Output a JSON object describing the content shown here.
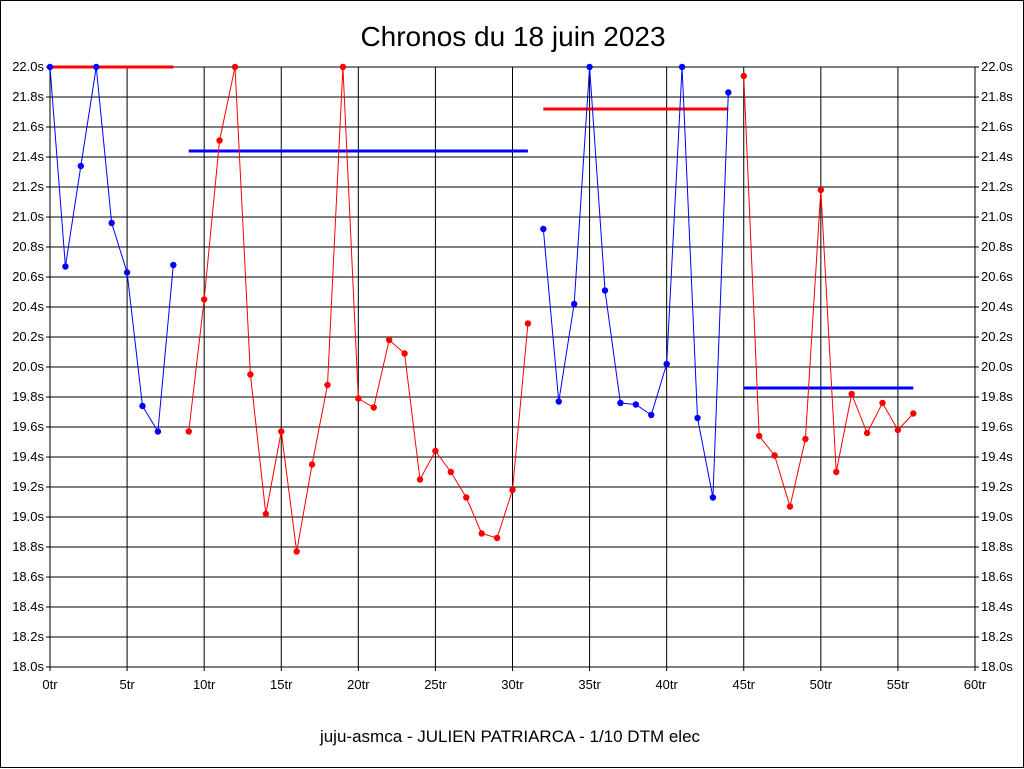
{
  "chart_data": {
    "type": "line",
    "title": "Chronos du 18 juin 2023",
    "footer": "juju-asmca - JULIEN PATRIARCA - 1/10 DTM elec",
    "xlabel": "",
    "ylabel": "",
    "xlim": [
      0,
      60
    ],
    "ylim": [
      18.0,
      22.0
    ],
    "x_ticks": [
      "0tr",
      "5tr",
      "10tr",
      "15tr",
      "20tr",
      "25tr",
      "30tr",
      "35tr",
      "40tr",
      "45tr",
      "50tr",
      "55tr",
      "60tr"
    ],
    "y_ticks": [
      "18.0s",
      "18.2s",
      "18.4s",
      "18.6s",
      "18.8s",
      "19.0s",
      "19.2s",
      "19.4s",
      "19.6s",
      "19.8s",
      "20.0s",
      "20.2s",
      "20.4s",
      "20.6s",
      "20.8s",
      "21.0s",
      "21.2s",
      "21.4s",
      "21.6s",
      "21.8s",
      "22.0s"
    ],
    "y_ticks_right": [
      "18.0s",
      "18.2s",
      "18.4s",
      "18.6s",
      "18.8s",
      "19.0s",
      "19.2s",
      "19.4s",
      "19.6s",
      "19.8s",
      "20.0s",
      "20.2s",
      "20.4s",
      "20.6s",
      "20.8s",
      "21.0s",
      "21.2s",
      "21.4s",
      "21.6s",
      "21.8s",
      "22.0s"
    ],
    "grid": true,
    "series": [
      {
        "color": "#0000ff",
        "x": [
          0,
          1,
          2,
          3,
          4,
          5,
          6,
          7,
          8
        ],
        "values": [
          22.0,
          20.67,
          21.34,
          22.0,
          20.96,
          20.63,
          19.74,
          19.57,
          20.68
        ]
      },
      {
        "color": "#ff0000",
        "x": [
          9,
          10,
          11,
          12,
          13,
          14,
          15,
          16,
          17,
          18,
          19,
          20,
          21,
          22,
          23,
          24,
          25,
          26,
          27,
          28,
          29,
          30,
          31
        ],
        "values": [
          19.57,
          20.45,
          21.51,
          22.0,
          19.95,
          19.02,
          19.57,
          18.77,
          19.35,
          19.88,
          22.0,
          19.79,
          19.73,
          20.18,
          20.09,
          19.25,
          19.44,
          19.3,
          19.13,
          18.89,
          18.86,
          19.18,
          20.29
        ]
      },
      {
        "color": "#0000ff",
        "x": [
          32,
          33,
          34,
          35,
          36,
          37,
          38,
          39,
          40,
          41,
          42,
          43,
          44
        ],
        "values": [
          20.92,
          19.77,
          20.42,
          22.0,
          20.51,
          19.76,
          19.75,
          19.68,
          20.02,
          22.0,
          19.66,
          19.13,
          21.83
        ]
      },
      {
        "color": "#ff0000",
        "x": [
          45,
          46,
          47,
          48,
          49,
          50,
          51,
          52,
          53,
          54,
          55,
          56
        ],
        "values": [
          21.94,
          19.54,
          19.41,
          19.07,
          19.52,
          21.18,
          19.3,
          19.82,
          19.56,
          19.76,
          19.58,
          19.69
        ]
      }
    ],
    "reference_lines": [
      {
        "color": "#ff0000",
        "x_start": 0,
        "x_end": 8,
        "value": 22.0
      },
      {
        "color": "#0000ff",
        "x_start": 9,
        "x_end": 31,
        "value": 21.44
      },
      {
        "color": "#ff0000",
        "x_start": 32,
        "x_end": 44,
        "value": 21.72
      },
      {
        "color": "#0000ff",
        "x_start": 45,
        "x_end": 56,
        "value": 19.86
      }
    ]
  }
}
